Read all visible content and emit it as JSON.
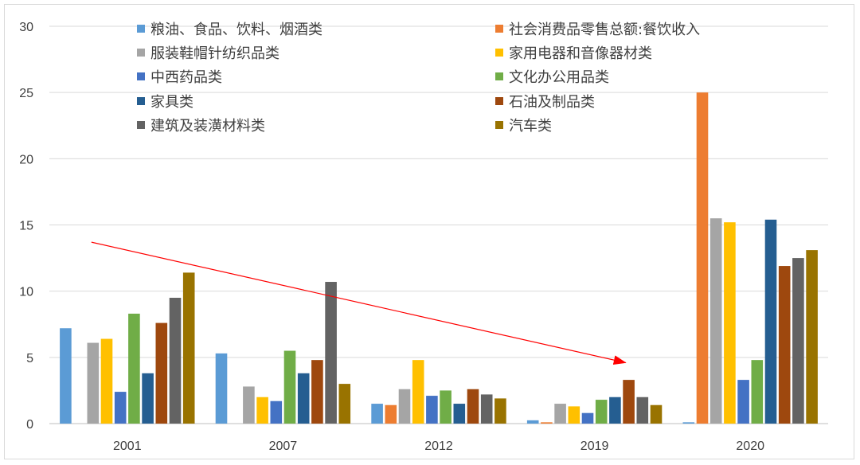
{
  "chart_data": {
    "type": "bar",
    "title": "",
    "xlabel": "",
    "ylabel": "",
    "ylim": [
      0,
      30
    ],
    "yticks": [
      0,
      5,
      10,
      15,
      20,
      25,
      30
    ],
    "grid": true,
    "legend_position": "top",
    "categories": [
      "2001",
      "2007",
      "2012",
      "2019",
      "2020"
    ],
    "series": [
      {
        "name": "粮油、食品、饮料、烟酒类",
        "color": "#5B9BD5",
        "values": [
          7.2,
          5.3,
          1.5,
          0.25,
          0.1
        ]
      },
      {
        "name": "社会消费品零售总额:餐饮收入",
        "color": "#ED7D31",
        "values": [
          null,
          null,
          1.4,
          0.1,
          25
        ]
      },
      {
        "name": "服装鞋帽针纺织品类",
        "color": "#A5A5A5",
        "values": [
          6.1,
          2.8,
          2.6,
          1.5,
          15.5
        ]
      },
      {
        "name": "家用电器和音像器材类",
        "color": "#FFC000",
        "values": [
          6.4,
          2.0,
          4.8,
          1.3,
          15.2
        ]
      },
      {
        "name": "中西药品类",
        "color": "#4472C4",
        "values": [
          2.4,
          1.7,
          2.1,
          0.8,
          3.3
        ]
      },
      {
        "name": "文化办公用品类",
        "color": "#70AD47",
        "values": [
          8.3,
          5.5,
          2.5,
          1.8,
          4.8
        ]
      },
      {
        "name": "家具类",
        "color": "#255E91",
        "values": [
          3.8,
          3.8,
          1.5,
          2.0,
          15.4
        ]
      },
      {
        "name": "石油及制品类",
        "color": "#9E480E",
        "values": [
          7.6,
          4.8,
          2.6,
          3.3,
          11.9
        ]
      },
      {
        "name": "建筑及装潢材料类",
        "color": "#636363",
        "values": [
          9.5,
          10.7,
          2.2,
          2.0,
          12.5
        ]
      },
      {
        "name": "汽车类",
        "color": "#997300",
        "values": [
          11.4,
          3.0,
          1.9,
          1.4,
          13.1
        ]
      }
    ],
    "annotations": [
      {
        "type": "arrow",
        "color": "#FF0000",
        "from": {
          "category": "2001",
          "value": 13.7
        },
        "to": {
          "category": "2019",
          "value": 4.6
        }
      }
    ]
  }
}
